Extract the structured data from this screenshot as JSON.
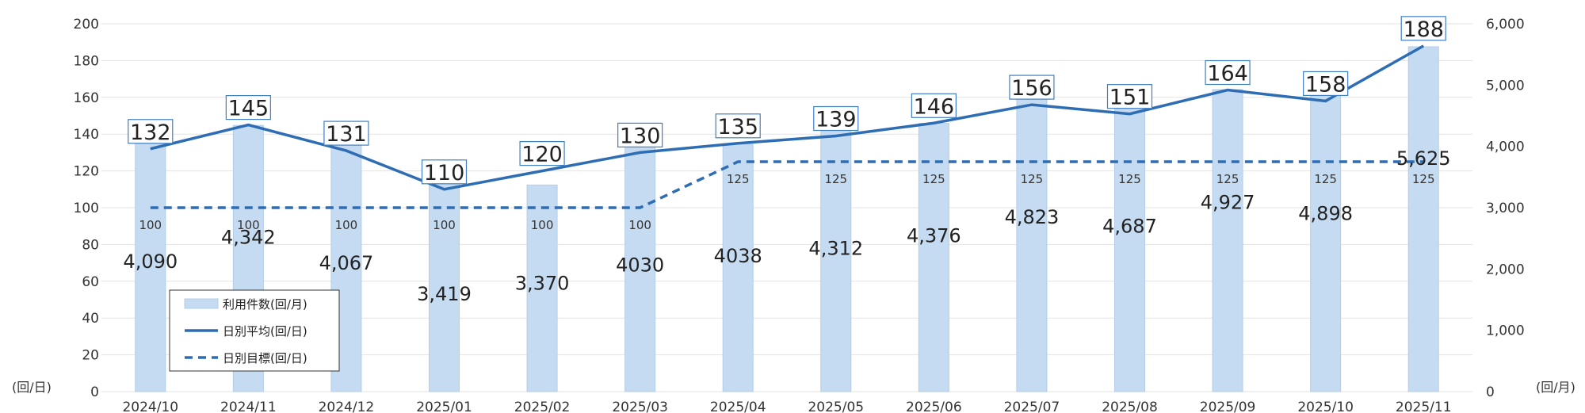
{
  "chart_data": {
    "type": "bar+line",
    "categories": [
      "2024/10",
      "2024/11",
      "2024/12",
      "2025/01",
      "2025/02",
      "2025/03",
      "2025/04",
      "2025/05",
      "2025/06",
      "2025/07",
      "2025/08",
      "2025/09",
      "2025/10",
      "2025/11"
    ],
    "series": [
      {
        "name": "利用件数(回/月)",
        "type": "bar",
        "axis": "right",
        "values": [
          4090,
          4342,
          4067,
          3419,
          3370,
          4030,
          4038,
          4312,
          4376,
          4823,
          4687,
          4927,
          4898,
          5625
        ],
        "labels": [
          "4,090",
          "4,342",
          "4,067",
          "3,419",
          "3,370",
          "4030",
          "4038",
          "4,312",
          "4,376",
          "4,823",
          "4,687",
          "4,927",
          "4,898",
          "5,625"
        ],
        "color": "#c5dbf1"
      },
      {
        "name": "日別平均(回/日)",
        "type": "line",
        "axis": "left",
        "values": [
          132,
          145,
          131,
          110,
          120,
          130,
          135,
          139,
          146,
          156,
          151,
          164,
          158,
          188
        ],
        "color": "#2e6db4"
      },
      {
        "name": "日別目標(回/日)",
        "type": "line-dashed",
        "axis": "left",
        "values": [
          100,
          100,
          100,
          100,
          100,
          100,
          125,
          125,
          125,
          125,
          125,
          125,
          125,
          125
        ],
        "color": "#2e6db4"
      }
    ],
    "y_left": {
      "unit": "(回/日)",
      "ylim": [
        0,
        200
      ],
      "ticks": [
        "0",
        "20",
        "40",
        "60",
        "80",
        "100",
        "120",
        "140",
        "160",
        "180",
        "200"
      ]
    },
    "y_right": {
      "unit": "(回/月)",
      "ylim": [
        0,
        6000
      ],
      "ticks": [
        "0",
        "1,000",
        "2,000",
        "3,000",
        "4,000",
        "5,000",
        "6,000"
      ]
    },
    "grid": true,
    "legend": "bottom-left"
  }
}
